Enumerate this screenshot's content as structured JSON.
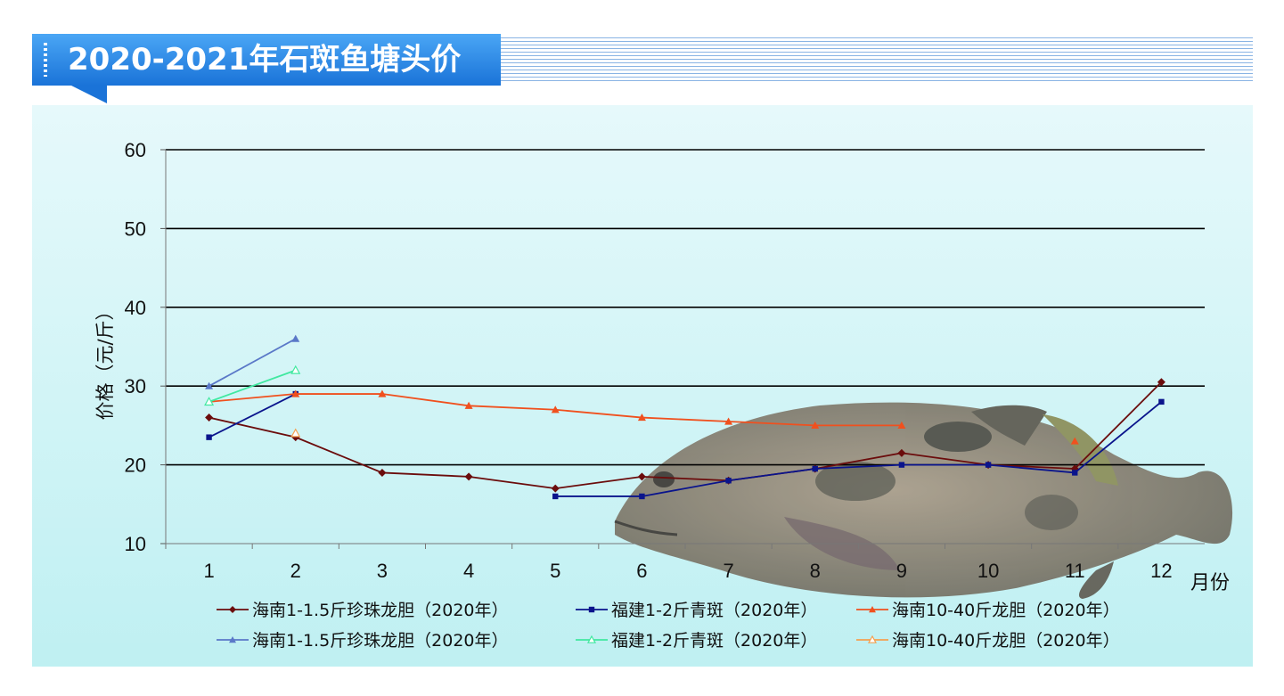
{
  "header": {
    "title": "2020-2021年石斑鱼塘头价"
  },
  "chart_data": {
    "type": "line",
    "title": "",
    "xlabel": "月份",
    "ylabel": "价格（元/斤）",
    "ylim": [
      10,
      60
    ],
    "yticks": [
      10,
      20,
      30,
      40,
      50,
      60
    ],
    "categories": [
      "1",
      "2",
      "3",
      "4",
      "5",
      "6",
      "7",
      "8",
      "9",
      "10",
      "11",
      "12"
    ],
    "legend_position": "bottom",
    "grid": true,
    "series": [
      {
        "name": "海南1-1.5斤珍珠龙胆（2020年）",
        "color": "#6b0c0c",
        "marker": "diamond",
        "values": [
          26,
          23.5,
          19,
          18.5,
          17,
          18.5,
          18,
          19.5,
          21.5,
          20,
          19.5,
          30.5
        ]
      },
      {
        "name": "福建1-2斤青斑（2020年）",
        "color": "#0a148c",
        "marker": "square",
        "values": [
          23.5,
          29,
          null,
          null,
          16,
          16,
          18,
          19.5,
          20,
          20,
          19,
          28
        ]
      },
      {
        "name": "海南10-40斤龙胆（2020年）",
        "color": "#f0501e",
        "marker": "triangle",
        "values": [
          28,
          29,
          29,
          27.5,
          27,
          26,
          25.5,
          25,
          25,
          null,
          23,
          null
        ]
      },
      {
        "name": "海南1-1.5斤珍珠龙胆（2020年）",
        "color": "#5a78c8",
        "marker": "triangle",
        "values": [
          30,
          36,
          null,
          null,
          null,
          null,
          null,
          null,
          null,
          null,
          null,
          null
        ]
      },
      {
        "name": "福建1-2斤青斑（2020年）",
        "color": "#40e8a0",
        "marker": "triangle-open",
        "values": [
          28,
          32,
          null,
          null,
          null,
          null,
          null,
          null,
          null,
          null,
          null,
          null
        ]
      },
      {
        "name": "海南10-40斤龙胆（2020年）",
        "color": "#f4a050",
        "marker": "triangle-open",
        "values": [
          null,
          24,
          null,
          null,
          null,
          null,
          null,
          null,
          null,
          null,
          null,
          null
        ]
      }
    ]
  }
}
